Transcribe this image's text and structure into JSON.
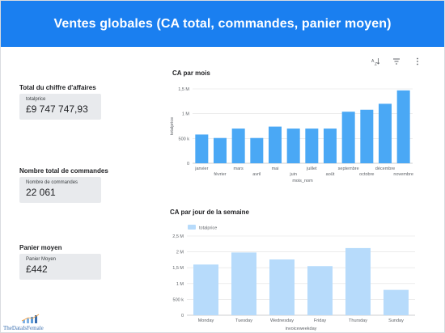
{
  "header": {
    "title": "Ventes globales (CA total, commandes, panier moyen)"
  },
  "toolbar": {
    "sort_icon": "sort-az-icon",
    "filter_icon": "filter-icon",
    "more_icon": "more-vert-icon"
  },
  "kpis": {
    "revenue": {
      "title": "Total du chiffre d'affaires",
      "label": "totalprice",
      "value": "£9 747 747,93"
    },
    "orders": {
      "title": "Nombre total de commandes",
      "label": "Nombre de commandes",
      "value": "22 061"
    },
    "basket": {
      "title": "Panier moyen",
      "label": "Panier Moyen",
      "value": "£442"
    }
  },
  "logo": {
    "text": "TheDataIsFemale"
  },
  "colors": {
    "header": "#1a7ff0",
    "bar_month": "#4aa8f5",
    "bar_week": "#b7dbfb"
  },
  "chart_data": [
    {
      "type": "bar",
      "title": "CA par mois",
      "xlabel": "mois_nom",
      "ylabel": "totalprice",
      "categories": [
        "janvier",
        "février",
        "mars",
        "avril",
        "mai",
        "juin",
        "juillet",
        "août",
        "septembre",
        "octobre",
        "décembre",
        "novembre"
      ],
      "values": [
        580000,
        510000,
        700000,
        510000,
        740000,
        700000,
        700000,
        700000,
        1040000,
        1080000,
        1200000,
        1470000
      ],
      "ylim": [
        0,
        1500000
      ],
      "yticks": [
        0,
        500000,
        1000000,
        1500000
      ],
      "ytick_labels": [
        "0",
        "500 k",
        "1 M",
        "1,5 M"
      ],
      "grid": true
    },
    {
      "type": "bar",
      "title": "CA par jour de la semaine",
      "xlabel": "invoiceweekday",
      "categories": [
        "Monday",
        "Tuesday",
        "Wednesday",
        "Friday",
        "Thursday",
        "Sunday"
      ],
      "series": [
        {
          "name": "totalprice",
          "values": [
            1600000,
            1980000,
            1760000,
            1550000,
            2120000,
            800000
          ]
        }
      ],
      "ylim": [
        0,
        2500000
      ],
      "yticks": [
        0,
        500000,
        1000000,
        1500000,
        2000000,
        2500000
      ],
      "ytick_labels": [
        "0",
        "500 k",
        "1 M",
        "1,5 M",
        "2 M",
        "2,5 M"
      ],
      "legend": "top-left",
      "grid": true
    }
  ]
}
